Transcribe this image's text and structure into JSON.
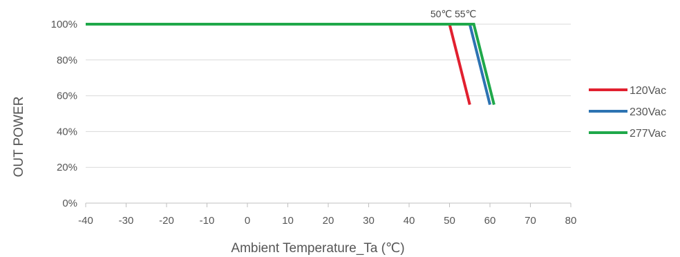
{
  "chart_data": {
    "type": "line",
    "title": "",
    "xlabel": "Ambient Temperature_Ta  (℃)",
    "ylabel": "OUT POWER",
    "xlim": [
      -40,
      80
    ],
    "ylim": [
      0,
      100
    ],
    "x_ticks": [
      -40,
      -30,
      -20,
      -10,
      0,
      10,
      20,
      30,
      40,
      50,
      60,
      70,
      80
    ],
    "x_tick_labels": [
      "-40",
      "-30",
      "-20",
      "-10",
      "0",
      "10",
      "20",
      "30",
      "40",
      "50",
      "60",
      "70",
      "80"
    ],
    "y_ticks": [
      0,
      20,
      40,
      60,
      80,
      100
    ],
    "y_tick_labels": [
      "0%",
      "20%",
      "40%",
      "60%",
      "80%",
      "100%"
    ],
    "grid": "horizontal",
    "legend_position": "right",
    "series": [
      {
        "name": "120Vac",
        "color": "#e1202f",
        "points": [
          [
            -40,
            100
          ],
          [
            50,
            100
          ],
          [
            55,
            55
          ]
        ]
      },
      {
        "name": "230Vac",
        "color": "#2d73b2",
        "points": [
          [
            -40,
            100
          ],
          [
            55,
            100
          ],
          [
            60,
            55
          ]
        ]
      },
      {
        "name": "277Vac",
        "color": "#1fa84a",
        "points": [
          [
            -40,
            100
          ],
          [
            56,
            100
          ],
          [
            61,
            55
          ]
        ]
      }
    ],
    "annotations": [
      {
        "text": "50℃",
        "x": 50
      },
      {
        "text": "55℃",
        "x": 56
      }
    ]
  }
}
